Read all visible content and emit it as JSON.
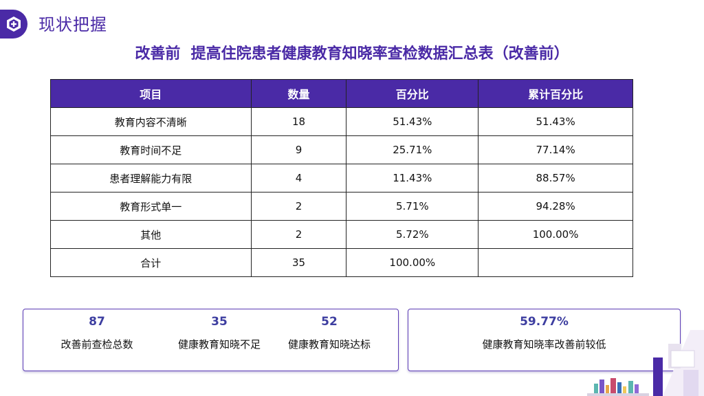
{
  "header": {
    "section_title": "现状把握",
    "icon": "hexagon-plus-icon"
  },
  "main_title": "改善前  提高住院患者健康教育知晓率查检数据汇总表（改善前）",
  "table": {
    "headers": [
      "项目",
      "数量",
      "百分比",
      "累计百分比"
    ],
    "rows": [
      [
        "教育内容不清晰",
        "18",
        "51.43%",
        "51.43%"
      ],
      [
        "教育时间不足",
        "9",
        "25.71%",
        "77.14%"
      ],
      [
        "患者理解能力有限",
        "4",
        "11.43%",
        "88.57%"
      ],
      [
        "教育形式单一",
        "2",
        "5.71%",
        "94.28%"
      ],
      [
        "其他",
        "2",
        "5.72%",
        "100.00%"
      ],
      [
        "合计",
        "35",
        "100.00%",
        ""
      ]
    ]
  },
  "stats": [
    {
      "value": "87",
      "label": "改善前查检总数"
    },
    {
      "value": "35",
      "label": "健康教育知晓不足"
    },
    {
      "value": "52",
      "label": "健康教育知晓达标"
    }
  ],
  "summary": {
    "value": "59.77%",
    "label": "健康教育知晓率改善前较低"
  },
  "colors": {
    "accent": "#4a2aa6",
    "stat_number": "#3d3ea0"
  }
}
